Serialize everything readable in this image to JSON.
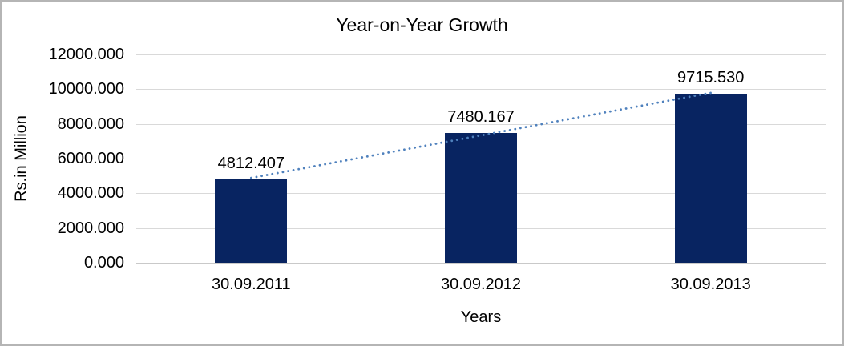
{
  "chart_data": {
    "type": "bar",
    "title": "Year-on-Year Growth",
    "xlabel": "Years",
    "ylabel": "Rs.in Million",
    "categories": [
      "30.09.2011",
      "30.09.2012",
      "30.09.2013"
    ],
    "values": [
      4812.407,
      7480.167,
      9715.53
    ],
    "data_labels": [
      "4812.407",
      "7480.167",
      "9715.530"
    ],
    "y_tick_labels": [
      "12000.000",
      "10000.000",
      "8000.000",
      "6000.000",
      "4000.000",
      "2000.000",
      "0.000"
    ],
    "ylim": [
      0,
      12000
    ],
    "grid": true,
    "legend_position": "none",
    "bar_color": "#082461",
    "gridline_color": "#d9d9d9",
    "axis_line_color": "#c9c9c9",
    "trendline": {
      "type": "linear",
      "style": "dotted",
      "color": "#4f81bd"
    }
  }
}
